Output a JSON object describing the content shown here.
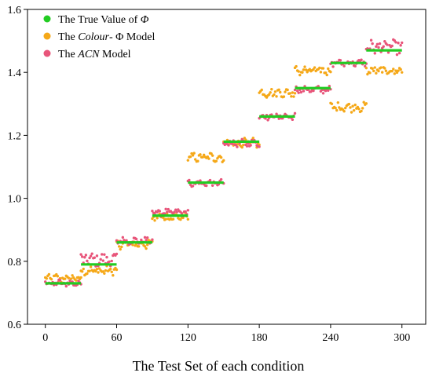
{
  "chart_data": {
    "type": "scatter",
    "title": "",
    "xlabel": "The Test Set of each condition",
    "ylabel": "",
    "xlim": [
      -15,
      320
    ],
    "ylim": [
      0.6,
      1.6
    ],
    "x_ticks": [
      0,
      60,
      120,
      180,
      240,
      300
    ],
    "y_ticks": [
      0.6,
      0.8,
      1.0,
      1.2,
      1.4,
      1.6
    ],
    "x_tick_labels": [
      "0",
      "60",
      "120",
      "180",
      "240",
      "300"
    ],
    "y_tick_labels": [
      "0.6",
      "0.8",
      "1.0",
      "1.2",
      "1.4",
      "1.6"
    ],
    "grid": false,
    "legend_position": "top-left",
    "legend": [
      {
        "key": "true",
        "prefix": "The True Value of ",
        "italic": "Φ",
        "suffix": ""
      },
      {
        "key": "colour",
        "prefix": "The ",
        "italic": "Colour",
        "suffix": "- Φ Model"
      },
      {
        "key": "acn",
        "prefix": "The ",
        "italic": "ACN",
        "suffix": " Model"
      }
    ],
    "colors": {
      "true": "#22cc22",
      "colour": "#f5a818",
      "acn": "#e8557a"
    },
    "segments": [
      {
        "x_start": 0,
        "x_end": 30,
        "true_value": 0.73,
        "colour_mean": 0.745,
        "acn_mean": 0.73
      },
      {
        "x_start": 30,
        "x_end": 60,
        "true_value": 0.79,
        "colour_mean": 0.77,
        "acn_mean": 0.805
      },
      {
        "x_start": 60,
        "x_end": 90,
        "true_value": 0.86,
        "colour_mean": 0.855,
        "acn_mean": 0.865
      },
      {
        "x_start": 90,
        "x_end": 120,
        "true_value": 0.945,
        "colour_mean": 0.94,
        "acn_mean": 0.955
      },
      {
        "x_start": 120,
        "x_end": 150,
        "true_value": 1.05,
        "colour_mean": 1.13,
        "acn_mean": 1.048
      },
      {
        "x_start": 150,
        "x_end": 180,
        "true_value": 1.18,
        "colour_mean": 1.175,
        "acn_mean": 1.175
      },
      {
        "x_start": 180,
        "x_end": 210,
        "true_value": 1.26,
        "colour_mean": 1.335,
        "acn_mean": 1.26
      },
      {
        "x_start": 210,
        "x_end": 240,
        "true_value": 1.35,
        "colour_mean": 1.405,
        "acn_mean": 1.345
      },
      {
        "x_start": 240,
        "x_end": 270,
        "true_value": 1.43,
        "colour_mean": 1.29,
        "acn_mean": 1.43
      },
      {
        "x_start": 270,
        "x_end": 300,
        "true_value": 1.47,
        "colour_mean": 1.405,
        "acn_mean": 1.48
      }
    ]
  }
}
